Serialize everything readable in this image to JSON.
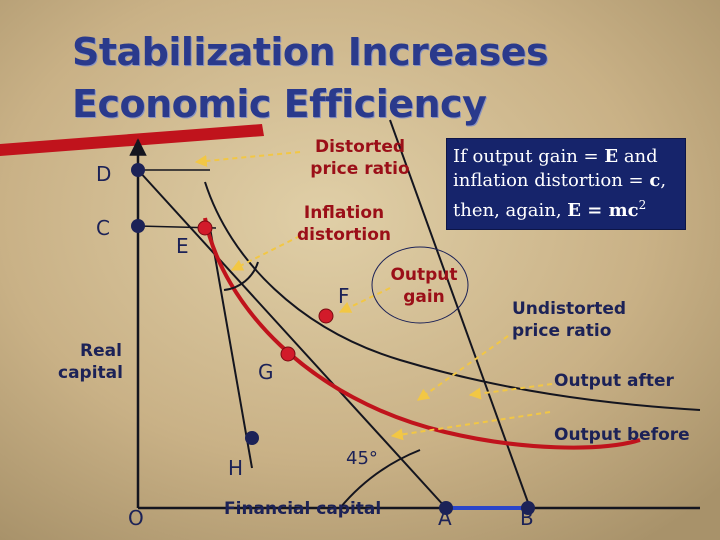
{
  "title": {
    "line1": "Stabilization Increases",
    "line2": "Economic Efficiency"
  },
  "axes": {
    "y_label_1": "Real",
    "y_label_2": "capital",
    "x_label": "Financial capital"
  },
  "points": {
    "D": "D",
    "C": "C",
    "E": "E",
    "F": "F",
    "G": "G",
    "H": "H",
    "O": "O",
    "A": "A",
    "B": "B"
  },
  "labels": {
    "distorted_1": "Distorted",
    "distorted_2": "price ratio",
    "inflation_1": "Inflation",
    "inflation_2": "distortion",
    "output_gain_1": "Output",
    "output_gain_2": "gain",
    "undistorted_1": "Undistorted",
    "undistorted_2": "price ratio",
    "output_after": "Output after",
    "output_before": "Output before",
    "angle": "45°"
  },
  "note": {
    "p1": "If output gain = ",
    "E1": "E",
    "p2": " and inflation distortion = ",
    "c": "c",
    "p3": ", then, again, ",
    "E2": "E = mc",
    "sup": "2"
  },
  "colors": {
    "title": "#2a3a8c",
    "curve_before": "#c0131c",
    "curve_after": "#14151f",
    "point_dot": "#1c2257",
    "red_dot": "#d21b2a",
    "label_red": "#9b0f18",
    "note_bg": "#16246b",
    "arrow": "#f0c23a"
  }
}
